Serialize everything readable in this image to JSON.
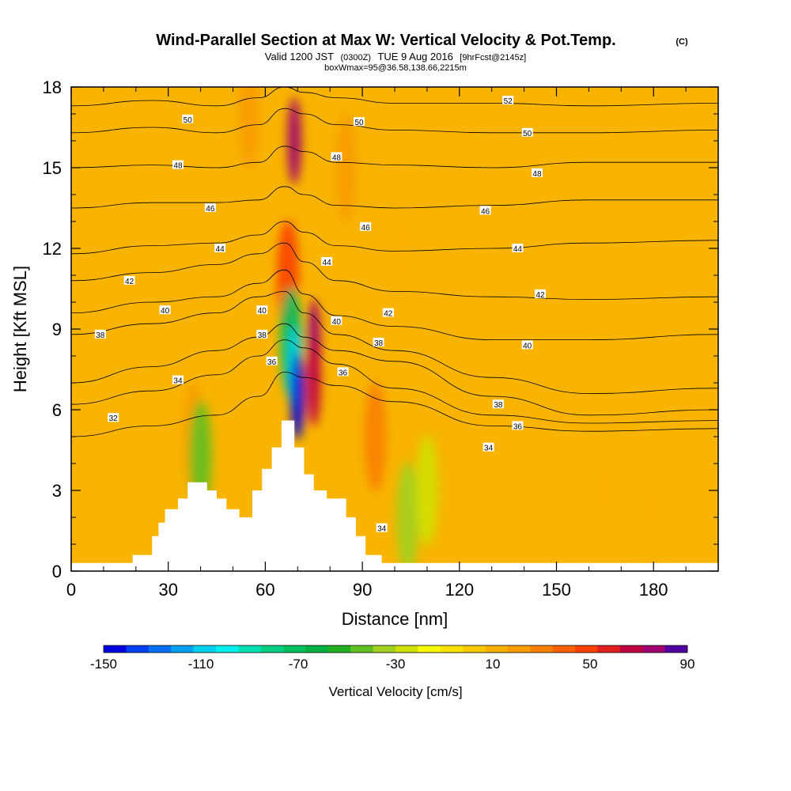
{
  "header": {
    "title": "Wind-Parallel Section at Max W: Vertical Velocity & Pot.Temp.",
    "copyright": "(C)",
    "valid_prefix": "Valid 1200 JST",
    "valid_zulu": "(0300Z)",
    "valid_date": "TUE 9 Aug 2016",
    "forecast": "[9hrFcst@2145z]",
    "box_info": "boxWmax=95@36.58,138.66,2215m"
  },
  "chart_data": {
    "type": "heatmap",
    "title": "Wind-Parallel Section at Max W: Vertical Velocity & Pot.Temp.",
    "xlabel": "Distance [nm]",
    "ylabel": "Height [Kft MSL]",
    "xlim": [
      0,
      200
    ],
    "ylim": [
      0,
      18
    ],
    "x_ticks": [
      0,
      30,
      60,
      90,
      120,
      150,
      180
    ],
    "y_ticks": [
      0,
      3,
      6,
      9,
      12,
      15,
      18
    ],
    "colorbar": {
      "title": "Vertical Velocity [cm/s]",
      "range": [
        -150,
        90
      ],
      "step": 10,
      "tick_values": [
        -150,
        -110,
        -70,
        -30,
        10,
        50,
        90
      ],
      "colors": [
        "#0000e0",
        "#0040f0",
        "#0070f0",
        "#00a0f0",
        "#00d0f0",
        "#00f0f0",
        "#00e0b0",
        "#00d080",
        "#00c060",
        "#00b040",
        "#20b020",
        "#60c020",
        "#a0d020",
        "#d0e000",
        "#f8f800",
        "#f8e000",
        "#f8c800",
        "#f8b000",
        "#f89c00",
        "#f88000",
        "#f86000",
        "#f84000",
        "#e02020",
        "#c00040",
        "#a00070",
        "#5000a0"
      ]
    },
    "terrain_profile": [
      [
        0,
        0.3
      ],
      [
        19,
        0.3
      ],
      [
        19,
        0.6
      ],
      [
        25,
        0.6
      ],
      [
        25,
        1.3
      ],
      [
        27,
        1.3
      ],
      [
        27,
        1.8
      ],
      [
        29,
        1.8
      ],
      [
        29,
        2.3
      ],
      [
        33,
        2.3
      ],
      [
        33,
        2.7
      ],
      [
        36,
        2.7
      ],
      [
        36,
        3.3
      ],
      [
        42,
        3.3
      ],
      [
        42,
        3
      ],
      [
        45,
        3
      ],
      [
        45,
        2.7
      ],
      [
        48,
        2.7
      ],
      [
        48,
        2.3
      ],
      [
        52,
        2.3
      ],
      [
        52,
        2
      ],
      [
        56,
        2
      ],
      [
        56,
        3
      ],
      [
        59,
        3
      ],
      [
        59,
        3.8
      ],
      [
        62,
        3.8
      ],
      [
        62,
        4.6
      ],
      [
        65,
        4.6
      ],
      [
        65,
        5.6
      ],
      [
        69,
        5.6
      ],
      [
        69,
        4.6
      ],
      [
        72,
        4.6
      ],
      [
        72,
        3.6
      ],
      [
        75,
        3.6
      ],
      [
        75,
        3
      ],
      [
        79,
        3
      ],
      [
        79,
        2.7
      ],
      [
        85,
        2.7
      ],
      [
        85,
        2
      ],
      [
        88,
        2
      ],
      [
        88,
        1.3
      ],
      [
        91,
        1.3
      ],
      [
        91,
        0.6
      ],
      [
        96,
        0.6
      ],
      [
        96,
        0.3
      ],
      [
        200,
        0.3
      ]
    ],
    "velocity_features": [
      {
        "x": 69,
        "y": 16,
        "w": 90
      },
      {
        "x": 67,
        "y": 11,
        "w": 60
      },
      {
        "x": 68,
        "y": 8.5,
        "w": -70
      },
      {
        "x": 69,
        "y": 7.5,
        "w": -110
      },
      {
        "x": 70,
        "y": 6.5,
        "w": -150
      },
      {
        "x": 75,
        "y": 8.5,
        "w": 90
      },
      {
        "x": 75,
        "y": 7,
        "w": 85
      },
      {
        "x": 94,
        "y": 5,
        "w": 45
      },
      {
        "x": 38,
        "y": 5,
        "w": 35
      },
      {
        "x": 40,
        "y": 4.3,
        "w": -40
      },
      {
        "x": 85,
        "y": 15,
        "w": 30
      },
      {
        "x": 55,
        "y": 17,
        "w": 30
      },
      {
        "x": 102,
        "y": 12,
        "w": 25
      },
      {
        "x": 180,
        "y": 2.5,
        "w": 25
      },
      {
        "x": 165,
        "y": 3,
        "w": 20
      },
      {
        "x": 104,
        "y": 2,
        "w": -25
      },
      {
        "x": 110,
        "y": 3,
        "w": -15
      }
    ],
    "isentropes": [
      {
        "theta": 32,
        "points": [
          [
            0,
            5
          ],
          [
            25,
            5.4
          ],
          [
            45,
            5.8
          ],
          [
            58,
            6.5
          ],
          [
            66,
            7.4
          ],
          [
            72,
            7.2
          ],
          [
            82,
            6.9
          ],
          [
            100,
            6.3
          ],
          [
            130,
            5.4
          ],
          [
            160,
            5.2
          ],
          [
            200,
            5.3
          ]
        ]
      },
      {
        "theta": 34,
        "points": [
          [
            0,
            6.2
          ],
          [
            25,
            6.7
          ],
          [
            45,
            7.3
          ],
          [
            58,
            8
          ],
          [
            66,
            8.6
          ],
          [
            72,
            8.3
          ],
          [
            82,
            7.7
          ],
          [
            100,
            6.8
          ],
          [
            130,
            5.8
          ],
          [
            160,
            5.5
          ],
          [
            200,
            5.6
          ]
        ]
      },
      {
        "theta": 36,
        "points": [
          [
            0,
            7
          ],
          [
            25,
            7.6
          ],
          [
            45,
            8.2
          ],
          [
            58,
            8.7
          ],
          [
            66,
            9.2
          ],
          [
            72,
            8.7
          ],
          [
            82,
            8.2
          ],
          [
            100,
            7.8
          ],
          [
            130,
            6.5
          ],
          [
            160,
            5.8
          ],
          [
            200,
            6
          ]
        ]
      },
      {
        "theta": 38,
        "points": [
          [
            0,
            8.8
          ],
          [
            25,
            9.2
          ],
          [
            45,
            9.6
          ],
          [
            58,
            10.2
          ],
          [
            66,
            10.4
          ],
          [
            72,
            9.6
          ],
          [
            82,
            8.8
          ],
          [
            100,
            8.2
          ],
          [
            130,
            7.2
          ],
          [
            160,
            6.6
          ],
          [
            200,
            6.8
          ]
        ]
      },
      {
        "theta": 40,
        "points": [
          [
            0,
            9.6
          ],
          [
            25,
            10
          ],
          [
            45,
            10.2
          ],
          [
            58,
            10.7
          ],
          [
            66,
            11.2
          ],
          [
            72,
            10.3
          ],
          [
            82,
            9.5
          ],
          [
            100,
            9.1
          ],
          [
            130,
            8.6
          ],
          [
            160,
            8.6
          ],
          [
            200,
            8.8
          ]
        ]
      },
      {
        "theta": 42,
        "points": [
          [
            0,
            10.8
          ],
          [
            25,
            11.1
          ],
          [
            45,
            11.4
          ],
          [
            58,
            11.8
          ],
          [
            66,
            12.2
          ],
          [
            72,
            11.5
          ],
          [
            82,
            10.8
          ],
          [
            100,
            10.4
          ],
          [
            130,
            10.2
          ],
          [
            160,
            10.1
          ],
          [
            200,
            10.2
          ]
        ]
      },
      {
        "theta": 44,
        "points": [
          [
            0,
            11.8
          ],
          [
            25,
            12.1
          ],
          [
            45,
            12.2
          ],
          [
            58,
            12.5
          ],
          [
            66,
            13
          ],
          [
            72,
            12.6
          ],
          [
            82,
            12.1
          ],
          [
            100,
            11.9
          ],
          [
            130,
            12
          ],
          [
            160,
            12.2
          ],
          [
            200,
            12.3
          ]
        ]
      },
      {
        "theta": 46,
        "points": [
          [
            0,
            13.5
          ],
          [
            25,
            13.7
          ],
          [
            45,
            13.7
          ],
          [
            58,
            13.8
          ],
          [
            66,
            14.3
          ],
          [
            72,
            14
          ],
          [
            82,
            13.6
          ],
          [
            100,
            13.5
          ],
          [
            130,
            13.6
          ],
          [
            160,
            13.8
          ],
          [
            200,
            13.8
          ]
        ]
      },
      {
        "theta": 48,
        "points": [
          [
            0,
            15
          ],
          [
            25,
            15.1
          ],
          [
            45,
            15
          ],
          [
            58,
            15.2
          ],
          [
            66,
            15.8
          ],
          [
            72,
            15.6
          ],
          [
            82,
            15.2
          ],
          [
            100,
            15.1
          ],
          [
            130,
            15
          ],
          [
            160,
            15.2
          ],
          [
            200,
            15.2
          ]
        ]
      },
      {
        "theta": 50,
        "points": [
          [
            0,
            16.3
          ],
          [
            25,
            16.5
          ],
          [
            45,
            16.3
          ],
          [
            58,
            16.6
          ],
          [
            66,
            17.2
          ],
          [
            72,
            17
          ],
          [
            82,
            16.6
          ],
          [
            100,
            16.4
          ],
          [
            130,
            16.3
          ],
          [
            160,
            16.3
          ],
          [
            200,
            16.4
          ]
        ]
      },
      {
        "theta": 52,
        "points": [
          [
            0,
            17.3
          ],
          [
            25,
            17.5
          ],
          [
            45,
            17.3
          ],
          [
            58,
            17.6
          ],
          [
            66,
            18
          ],
          [
            72,
            17.8
          ],
          [
            82,
            17.6
          ],
          [
            100,
            17.4
          ],
          [
            130,
            17.4
          ],
          [
            160,
            17.3
          ],
          [
            200,
            17.4
          ]
        ]
      }
    ],
    "contour_labels": [
      {
        "text": "50",
        "x": 36,
        "y": 16.8
      },
      {
        "text": "50",
        "x": 89,
        "y": 16.7
      },
      {
        "text": "52",
        "x": 135,
        "y": 17.5
      },
      {
        "text": "50",
        "x": 141,
        "y": 16.3
      },
      {
        "text": "48",
        "x": 33,
        "y": 15.1
      },
      {
        "text": "48",
        "x": 82,
        "y": 15.4
      },
      {
        "text": "48",
        "x": 144,
        "y": 14.8
      },
      {
        "text": "46",
        "x": 43,
        "y": 13.5
      },
      {
        "text": "46",
        "x": 91,
        "y": 12.8
      },
      {
        "text": "46",
        "x": 128,
        "y": 13.4
      },
      {
        "text": "44",
        "x": 46,
        "y": 12
      },
      {
        "text": "44",
        "x": 79,
        "y": 11.5
      },
      {
        "text": "44",
        "x": 138,
        "y": 12
      },
      {
        "text": "42",
        "x": 18,
        "y": 10.8
      },
      {
        "text": "42",
        "x": 98,
        "y": 9.6
      },
      {
        "text": "42",
        "x": 145,
        "y": 10.3
      },
      {
        "text": "40",
        "x": 29,
        "y": 9.7
      },
      {
        "text": "40",
        "x": 59,
        "y": 9.7
      },
      {
        "text": "40",
        "x": 82,
        "y": 9.3
      },
      {
        "text": "40",
        "x": 141,
        "y": 8.4
      },
      {
        "text": "38",
        "x": 9,
        "y": 8.8
      },
      {
        "text": "38",
        "x": 59,
        "y": 8.8
      },
      {
        "text": "38",
        "x": 95,
        "y": 8.5
      },
      {
        "text": "38",
        "x": 132,
        "y": 6.2
      },
      {
        "text": "36",
        "x": 62,
        "y": 7.8
      },
      {
        "text": "36",
        "x": 84,
        "y": 7.4
      },
      {
        "text": "36",
        "x": 138,
        "y": 5.4
      },
      {
        "text": "34",
        "x": 33,
        "y": 7.1
      },
      {
        "text": "34",
        "x": 129,
        "y": 4.6
      },
      {
        "text": "34",
        "x": 96,
        "y": 1.6
      },
      {
        "text": "32",
        "x": 13,
        "y": 5.7
      }
    ]
  }
}
